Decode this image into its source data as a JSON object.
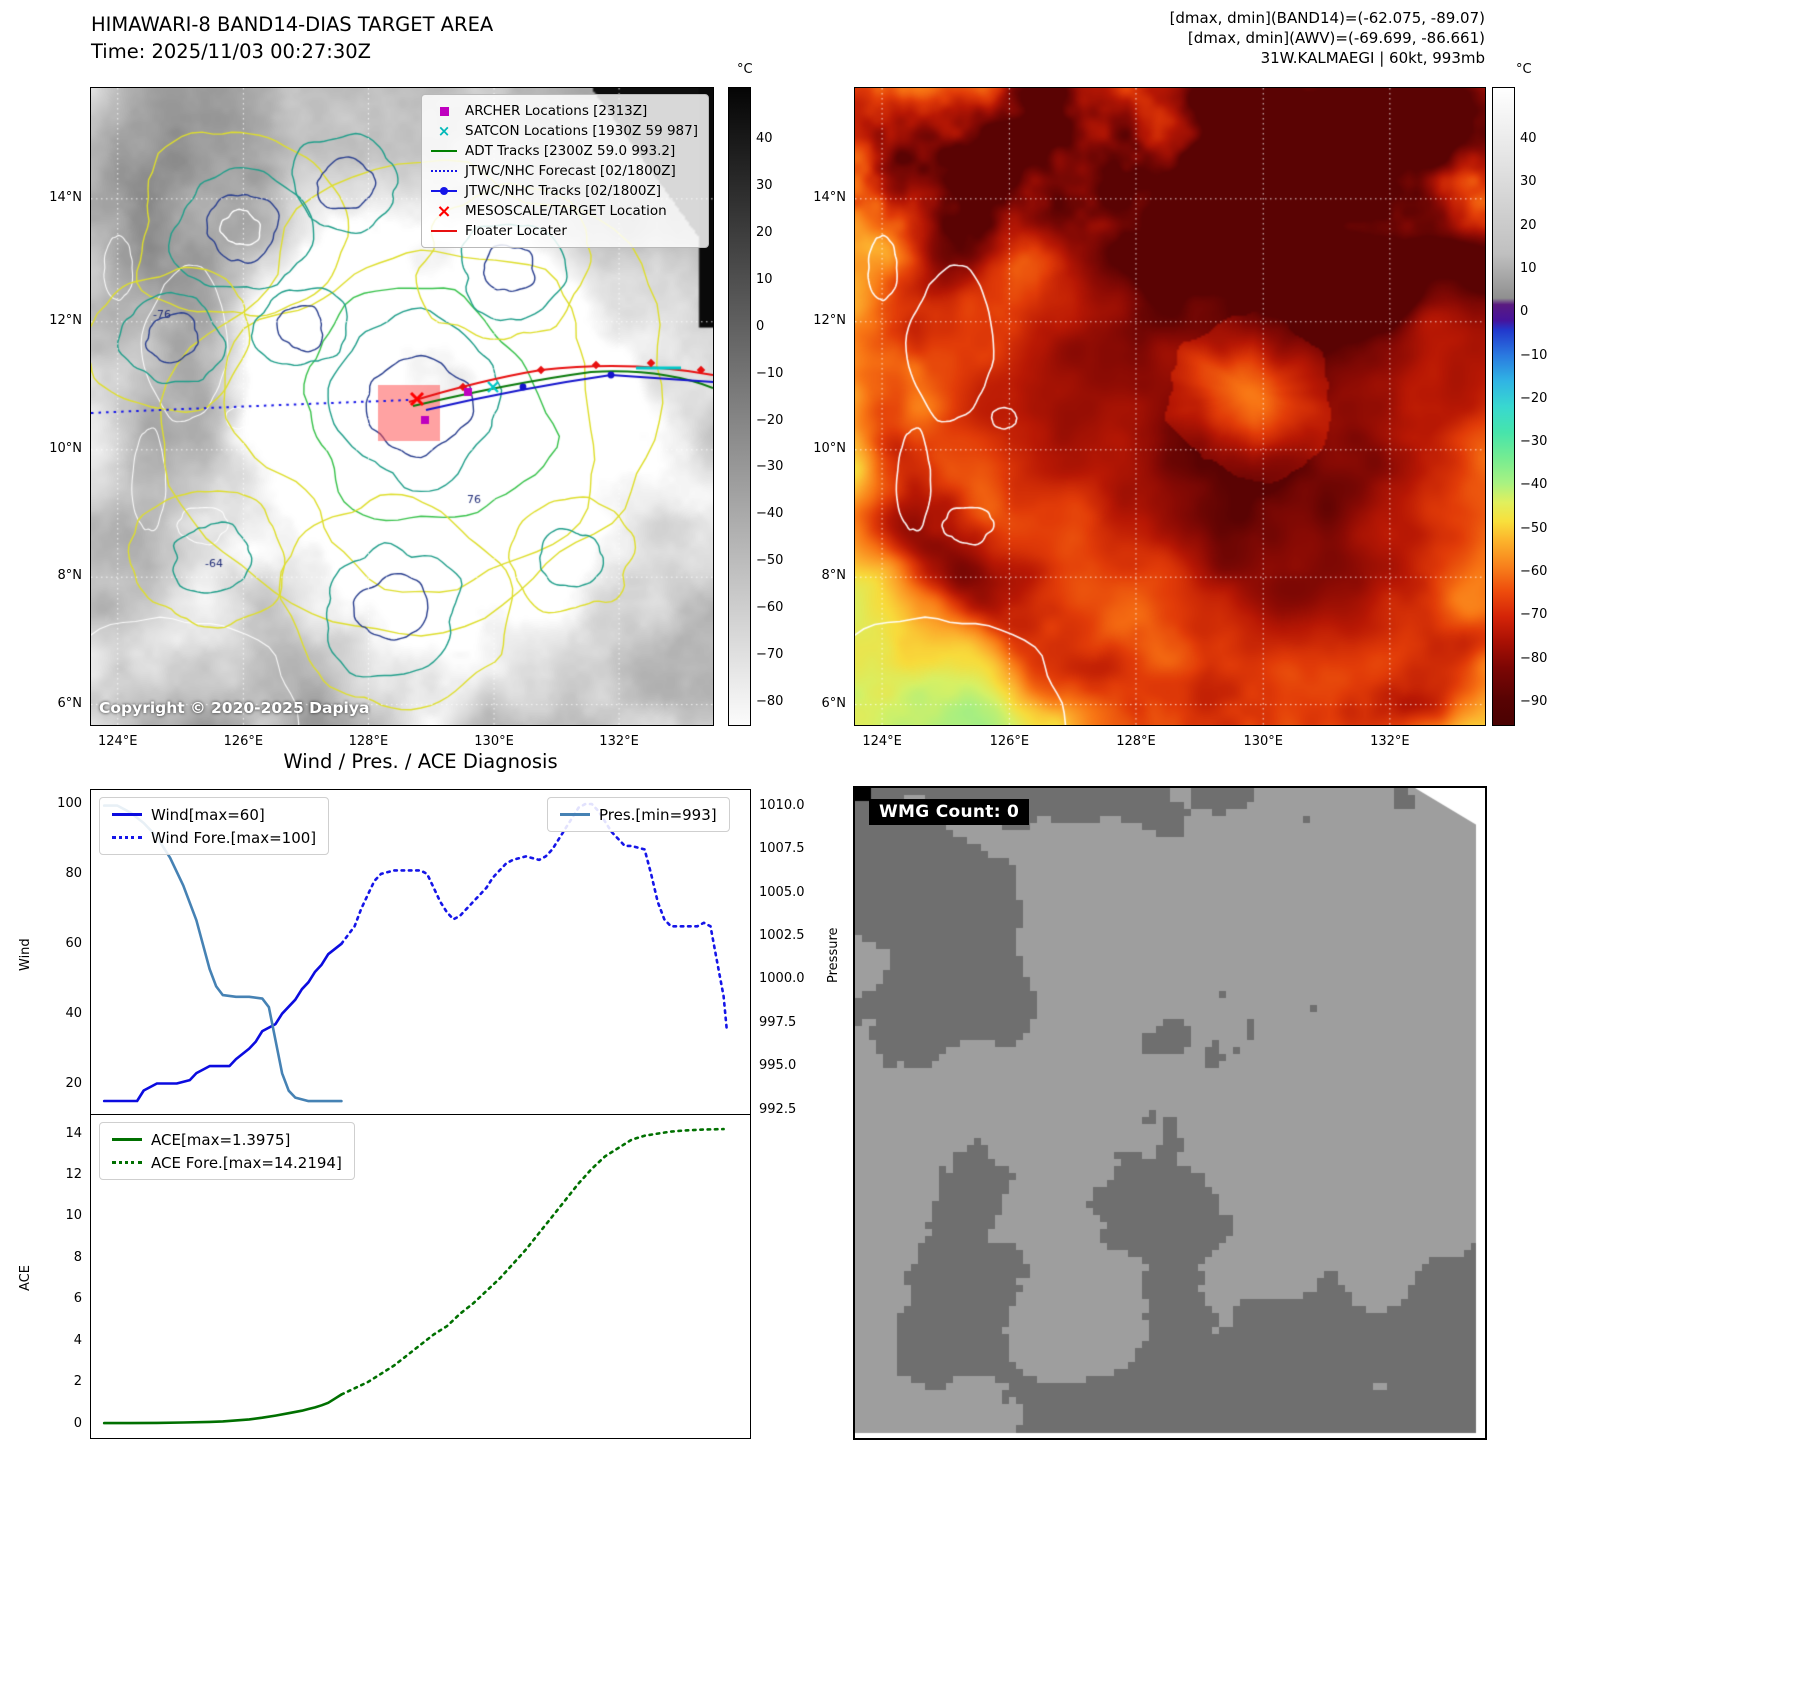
{
  "panel_tl": {
    "title": "HIMAWARI-8 BAND14-DIAS TARGET AREA",
    "subtitle": "Time: 2025/11/03 00:27:30Z",
    "copyright": "Copyright © 2020-2025 Dapiya",
    "colorbar": {
      "unit": "°C",
      "ticks": [
        "40",
        "30",
        "20",
        "10",
        "0",
        "−10",
        "−20",
        "−30",
        "−40",
        "−50",
        "−60",
        "−70",
        "−80"
      ],
      "gradient": [
        [
          0,
          "#050505"
        ],
        [
          100,
          "#fbfbfb"
        ]
      ]
    },
    "x_ticks": [
      "124°E",
      "126°E",
      "128°E",
      "130°E",
      "132°E"
    ],
    "y_ticks": [
      "14°N",
      "12°N",
      "10°N",
      "8°N",
      "6°N"
    ],
    "contour_labels": [
      "-76",
      "-64",
      "76"
    ],
    "legend": [
      {
        "label": "ARCHER Locations [2313Z]",
        "marker": "square",
        "color": "#bf00bf"
      },
      {
        "label": "SATCON Locations [1930Z 59 987]",
        "marker": "x",
        "color": "#00b8b8"
      },
      {
        "label": "ADT Tracks [2300Z 59.0 993.2]",
        "marker": "line",
        "color": "#008000"
      },
      {
        "label": "JTWC/NHC Forecast [02/1800Z]",
        "marker": "dotted",
        "color": "#1515e8"
      },
      {
        "label": "JTWC/NHC Tracks [02/1800Z]",
        "marker": "line-dot",
        "color": "#1515e8"
      },
      {
        "label": "MESOSCALE/TARGET Location",
        "marker": "x-bold",
        "color": "#ff0000"
      },
      {
        "label": "Floater Locater",
        "marker": "line",
        "color": "#e81010"
      }
    ]
  },
  "panel_tr": {
    "info_line1": "[dmax, dmin](BAND14)=(-62.075, -89.07)",
    "info_line2": "[dmax, dmin](AWV)=(-69.699, -86.661)",
    "info_line3": "31W.KALMAEGI | 60kt, 993mb",
    "colorbar": {
      "unit": "°C",
      "ticks": [
        "40",
        "30",
        "20",
        "10",
        "0",
        "−10",
        "−20",
        "−30",
        "−40",
        "−50",
        "−60",
        "−70",
        "−80",
        "−90"
      ],
      "gradient": [
        [
          0,
          "#ffffff"
        ],
        [
          26,
          "#c0c0c0"
        ],
        [
          33,
          "#8f8f8f"
        ],
        [
          34,
          "#5a1a80"
        ],
        [
          36.5,
          "#46149c"
        ],
        [
          38,
          "#2238cc"
        ],
        [
          42,
          "#2a7ae0"
        ],
        [
          46,
          "#30b4e4"
        ],
        [
          50,
          "#38d8d0"
        ],
        [
          54,
          "#46e4ac"
        ],
        [
          58,
          "#74ec92"
        ],
        [
          62,
          "#a8f282"
        ],
        [
          65,
          "#e0f05e"
        ],
        [
          68,
          "#f8e03c"
        ],
        [
          71,
          "#fcb42c"
        ],
        [
          75,
          "#f8821c"
        ],
        [
          79,
          "#ee4c0c"
        ],
        [
          83,
          "#d42408"
        ],
        [
          87,
          "#a81004"
        ],
        [
          91,
          "#7c0604"
        ],
        [
          96,
          "#580303"
        ],
        [
          100,
          "#4a0202"
        ]
      ]
    },
    "x_ticks": [
      "124°E",
      "126°E",
      "128°E",
      "130°E",
      "132°E"
    ],
    "y_ticks": [
      "14°N",
      "12°N",
      "10°N",
      "8°N",
      "6°N"
    ]
  },
  "panel_bl": {
    "title": "Wind / Pres. / ACE Diagnosis"
  },
  "panel_br": {
    "wmg_label": "WMG Count: 0"
  },
  "chart_data": [
    {
      "type": "line",
      "ylabel_left": "Wind",
      "ylabel_right": "Pressure",
      "xlim": [
        0,
        100
      ],
      "ylim_left": [
        11,
        104
      ],
      "ylim_right": [
        992.2,
        1010.9
      ],
      "yticks_left": [
        20,
        40,
        60,
        80,
        100
      ],
      "ytick_labels_left": [
        "20",
        "40",
        "60",
        "80",
        "100"
      ],
      "yticks_right": [
        992.5,
        995.0,
        997.5,
        1000.0,
        1002.5,
        1005.0,
        1007.5,
        1010.0
      ],
      "ytick_labels_right": [
        "992.5",
        "995.0",
        "997.5",
        "1000.0",
        "1002.5",
        "1005.0",
        "1007.5",
        "1010.0"
      ],
      "series": [
        {
          "name": "Wind[max=60]",
          "axis": "left",
          "style": "solid",
          "color": "#0b0bdf",
          "x": [
            2,
            5,
            7,
            8,
            10,
            13,
            15,
            16,
            18,
            21,
            22,
            24,
            25,
            26,
            28,
            29,
            30,
            31,
            32,
            33,
            34,
            35,
            36,
            38
          ],
          "y": [
            15,
            15,
            15,
            18,
            20,
            20,
            21,
            23,
            25,
            25,
            27,
            30,
            32,
            35,
            37,
            40,
            42,
            44,
            47,
            49,
            52,
            54,
            57,
            60
          ]
        },
        {
          "name": "Wind Fore.[max=100]",
          "axis": "left",
          "style": "dotted",
          "color": "#1515e8",
          "x": [
            38,
            40,
            41,
            42,
            43,
            44,
            46,
            48,
            50,
            51,
            52,
            53,
            54,
            55,
            56,
            57,
            58,
            60,
            61,
            62,
            63,
            64,
            66,
            68,
            69,
            70,
            71,
            72,
            73,
            74,
            75,
            76,
            77,
            78,
            79,
            80,
            81,
            82,
            84,
            85,
            86,
            87,
            88,
            90,
            92,
            93,
            94,
            95,
            96,
            96.5
          ],
          "y": [
            60,
            65,
            70,
            74,
            78,
            80,
            81,
            81,
            81,
            80,
            76,
            72,
            69,
            67,
            68,
            70,
            72,
            76,
            79,
            81,
            83,
            84,
            85,
            84,
            85,
            87,
            90,
            93,
            96,
            99,
            100,
            100,
            98,
            95,
            92,
            90,
            88,
            88,
            87,
            80,
            72,
            67,
            65,
            65,
            65,
            66,
            65,
            55,
            45,
            35
          ]
        },
        {
          "name": "Pres.[min=993]",
          "axis": "right",
          "style": "solid",
          "color": "#4682b4",
          "x": [
            2,
            4,
            6,
            8,
            10,
            12,
            14,
            16,
            17,
            18,
            19,
            20,
            22,
            24,
            26,
            27,
            28,
            29,
            30,
            31,
            33,
            36,
            38
          ],
          "y": [
            1010,
            1010,
            1009.6,
            1009,
            1008.2,
            1007,
            1005.4,
            1003.4,
            1002,
            1000.6,
            999.6,
            999.1,
            999,
            999,
            998.9,
            998.4,
            996.5,
            994.6,
            993.6,
            993.2,
            993,
            993,
            993
          ]
        }
      ]
    },
    {
      "type": "line",
      "ylabel_left": "ACE",
      "xlim": [
        0,
        100
      ],
      "ylim_left": [
        -0.7,
        14.9
      ],
      "yticks_left": [
        0,
        2,
        4,
        6,
        8,
        10,
        12,
        14
      ],
      "ytick_labels_left": [
        "0",
        "2",
        "4",
        "6",
        "8",
        "10",
        "12",
        "14"
      ],
      "series": [
        {
          "name": "ACE[max=1.3975]",
          "axis": "left",
          "style": "solid",
          "color": "#007000",
          "x": [
            2,
            6,
            10,
            14,
            18,
            20,
            22,
            24,
            26,
            28,
            30,
            32,
            33,
            34,
            35,
            36,
            37,
            38
          ],
          "y": [
            0.02,
            0.02,
            0.03,
            0.05,
            0.08,
            0.1,
            0.15,
            0.2,
            0.28,
            0.38,
            0.5,
            0.62,
            0.7,
            0.78,
            0.88,
            1.0,
            1.2,
            1.4
          ]
        },
        {
          "name": "ACE Fore.[max=14.2194]",
          "axis": "left",
          "style": "dotted",
          "color": "#007000",
          "x": [
            38,
            40,
            42,
            44,
            46,
            48,
            50,
            52,
            53,
            54,
            55,
            56,
            58,
            60,
            62,
            64,
            66,
            68,
            70,
            72,
            74,
            76,
            78,
            80,
            82,
            84,
            86,
            88,
            90,
            93,
            96
          ],
          "y": [
            1.4,
            1.7,
            2.0,
            2.4,
            2.8,
            3.3,
            3.8,
            4.3,
            4.5,
            4.7,
            5.0,
            5.3,
            5.8,
            6.4,
            7.0,
            7.7,
            8.4,
            9.2,
            10.0,
            10.8,
            11.6,
            12.3,
            12.9,
            13.3,
            13.7,
            13.9,
            14.0,
            14.1,
            14.15,
            14.2,
            14.22
          ]
        }
      ]
    }
  ]
}
